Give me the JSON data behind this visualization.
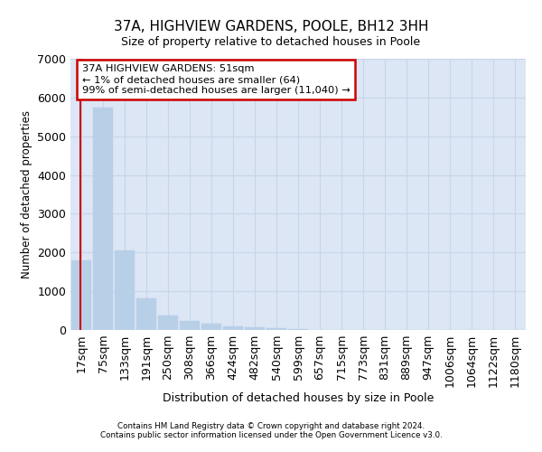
{
  "title_line1": "37A, HIGHVIEW GARDENS, POOLE, BH12 3HH",
  "title_line2": "Size of property relative to detached houses in Poole",
  "xlabel": "Distribution of detached houses by size in Poole",
  "ylabel": "Number of detached properties",
  "categories": [
    "17sqm",
    "75sqm",
    "133sqm",
    "191sqm",
    "250sqm",
    "308sqm",
    "366sqm",
    "424sqm",
    "482sqm",
    "540sqm",
    "599sqm",
    "657sqm",
    "715sqm",
    "773sqm",
    "831sqm",
    "889sqm",
    "947sqm",
    "1006sqm",
    "1064sqm",
    "1122sqm",
    "1180sqm"
  ],
  "values": [
    1800,
    5750,
    2050,
    820,
    380,
    240,
    155,
    100,
    65,
    40,
    20,
    10,
    5,
    0,
    0,
    0,
    0,
    0,
    0,
    0,
    0
  ],
  "bar_color": "#b8cfe8",
  "bar_edgecolor": "#b8cfe8",
  "annotation_box_text": "37A HIGHVIEW GARDENS: 51sqm\n← 1% of detached houses are smaller (64)\n99% of semi-detached houses are larger (11,040) →",
  "annotation_box_color": "#ffffff",
  "annotation_box_edgecolor": "#cc0000",
  "vline_color": "#cc0000",
  "grid_color": "#c8d4e8",
  "background_color": "#dce6f5",
  "ylim": [
    0,
    7000
  ],
  "yticks": [
    0,
    1000,
    2000,
    3000,
    4000,
    5000,
    6000,
    7000
  ],
  "footer_line1": "Contains HM Land Registry data © Crown copyright and database right 2024.",
  "footer_line2": "Contains public sector information licensed under the Open Government Licence v3.0."
}
